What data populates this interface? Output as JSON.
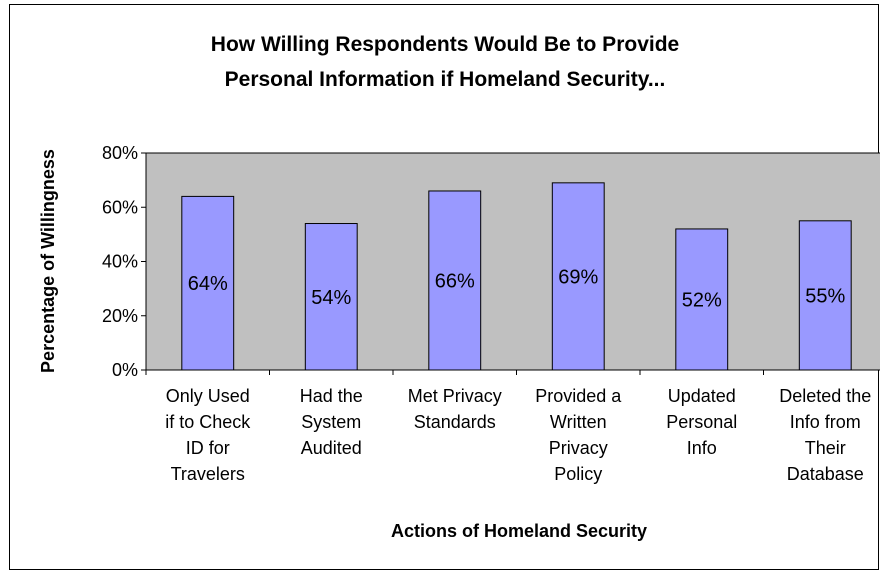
{
  "chart_data": {
    "type": "bar",
    "title": "How Willing Respondents Would Be to Provide Personal Information if Homeland Security...",
    "title_lines": [
      "How Willing Respondents Would Be to Provide",
      "Personal Information if Homeland Security..."
    ],
    "xlabel": "Actions of Homeland Security",
    "ylabel": "Percentage of Willingness",
    "ylim": [
      0,
      80
    ],
    "yticks": [
      "0%",
      "20%",
      "40%",
      "60%",
      "80%"
    ],
    "categories": [
      "Only Used if to Check ID for Travelers",
      "Had the System Audited",
      "Met Privacy Standards",
      "Provided a Written Privacy Policy",
      "Updated Personal Info",
      "Deleted the Info from Their Database"
    ],
    "category_lines": [
      [
        "Only Used",
        "if to Check",
        "ID for",
        "Travelers"
      ],
      [
        "Had the",
        "System",
        "Audited"
      ],
      [
        "Met Privacy",
        "Standards"
      ],
      [
        "Provided a",
        "Written",
        "Privacy",
        "Policy"
      ],
      [
        "Updated",
        "Personal",
        "Info"
      ],
      [
        "Deleted the",
        "Info from",
        "Their",
        "Database"
      ]
    ],
    "values": [
      64,
      54,
      66,
      69,
      52,
      55
    ],
    "data_labels": [
      "64%",
      "54%",
      "66%",
      "69%",
      "52%",
      "55%"
    ],
    "grid": false,
    "legend": "none",
    "colors": {
      "bar": "#9999ff",
      "plot_background": "#c0c0c0",
      "border": "#000000"
    }
  }
}
